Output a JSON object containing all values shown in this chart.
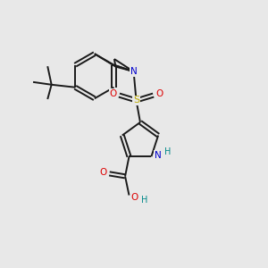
{
  "background_color": "#e8e8e8",
  "bond_color": "#1a1a1a",
  "N_color": "#0000cc",
  "O_color": "#dd0000",
  "S_color": "#bbaa00",
  "H_color": "#008888",
  "line_width": 1.4,
  "figsize": [
    3.0,
    3.0
  ],
  "dpi": 100,
  "xlim": [
    0,
    10
  ],
  "ylim": [
    0,
    10
  ]
}
